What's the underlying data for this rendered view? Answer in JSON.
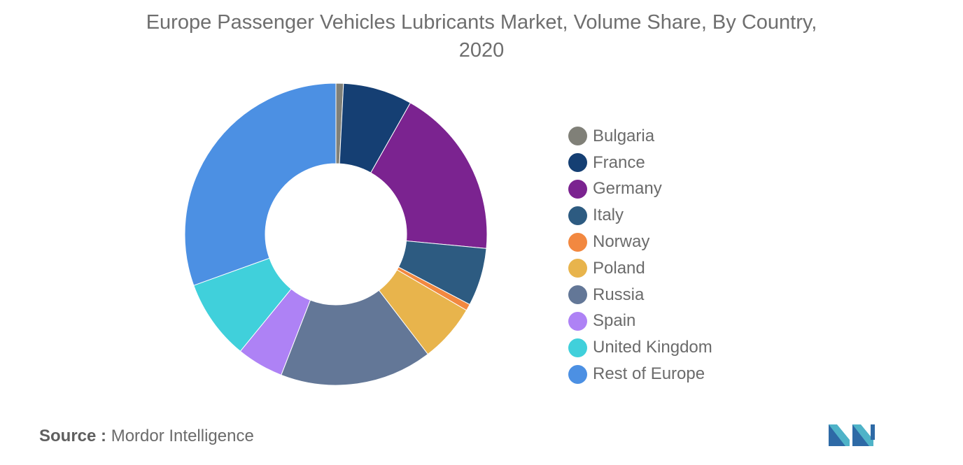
{
  "title_line1": "Europe Passenger Vehicles Lubricants Market, Volume Share, By Country,",
  "title_line2": "2020",
  "source_label": "Source :",
  "source_value": "Mordor Intelligence",
  "logo_icon": "mordor-intelligence-logo-icon",
  "chart_data": {
    "type": "pie",
    "variant": "donut",
    "start_angle_deg": 90,
    "direction": "clockwise",
    "title": "Europe Passenger Vehicles Lubricants Market, Volume Share, By Country, 2020",
    "legend_position": "right",
    "series": [
      {
        "name": "Bulgaria",
        "value": 0.8,
        "color": "#808078"
      },
      {
        "name": "France",
        "value": 7.4,
        "color": "#153f73"
      },
      {
        "name": "Germany",
        "value": 18.3,
        "color": "#7b2390"
      },
      {
        "name": "Italy",
        "value": 6.2,
        "color": "#2d5b81"
      },
      {
        "name": "Norway",
        "value": 0.7,
        "color": "#f28840"
      },
      {
        "name": "Poland",
        "value": 6.2,
        "color": "#e8b44c"
      },
      {
        "name": "Russia",
        "value": 16.3,
        "color": "#637797"
      },
      {
        "name": "Spain",
        "value": 5.0,
        "color": "#ae82f5"
      },
      {
        "name": "United Kingdom",
        "value": 8.6,
        "color": "#40d0db"
      },
      {
        "name": "Rest of Europe",
        "value": 30.5,
        "color": "#4c90e3"
      }
    ]
  }
}
